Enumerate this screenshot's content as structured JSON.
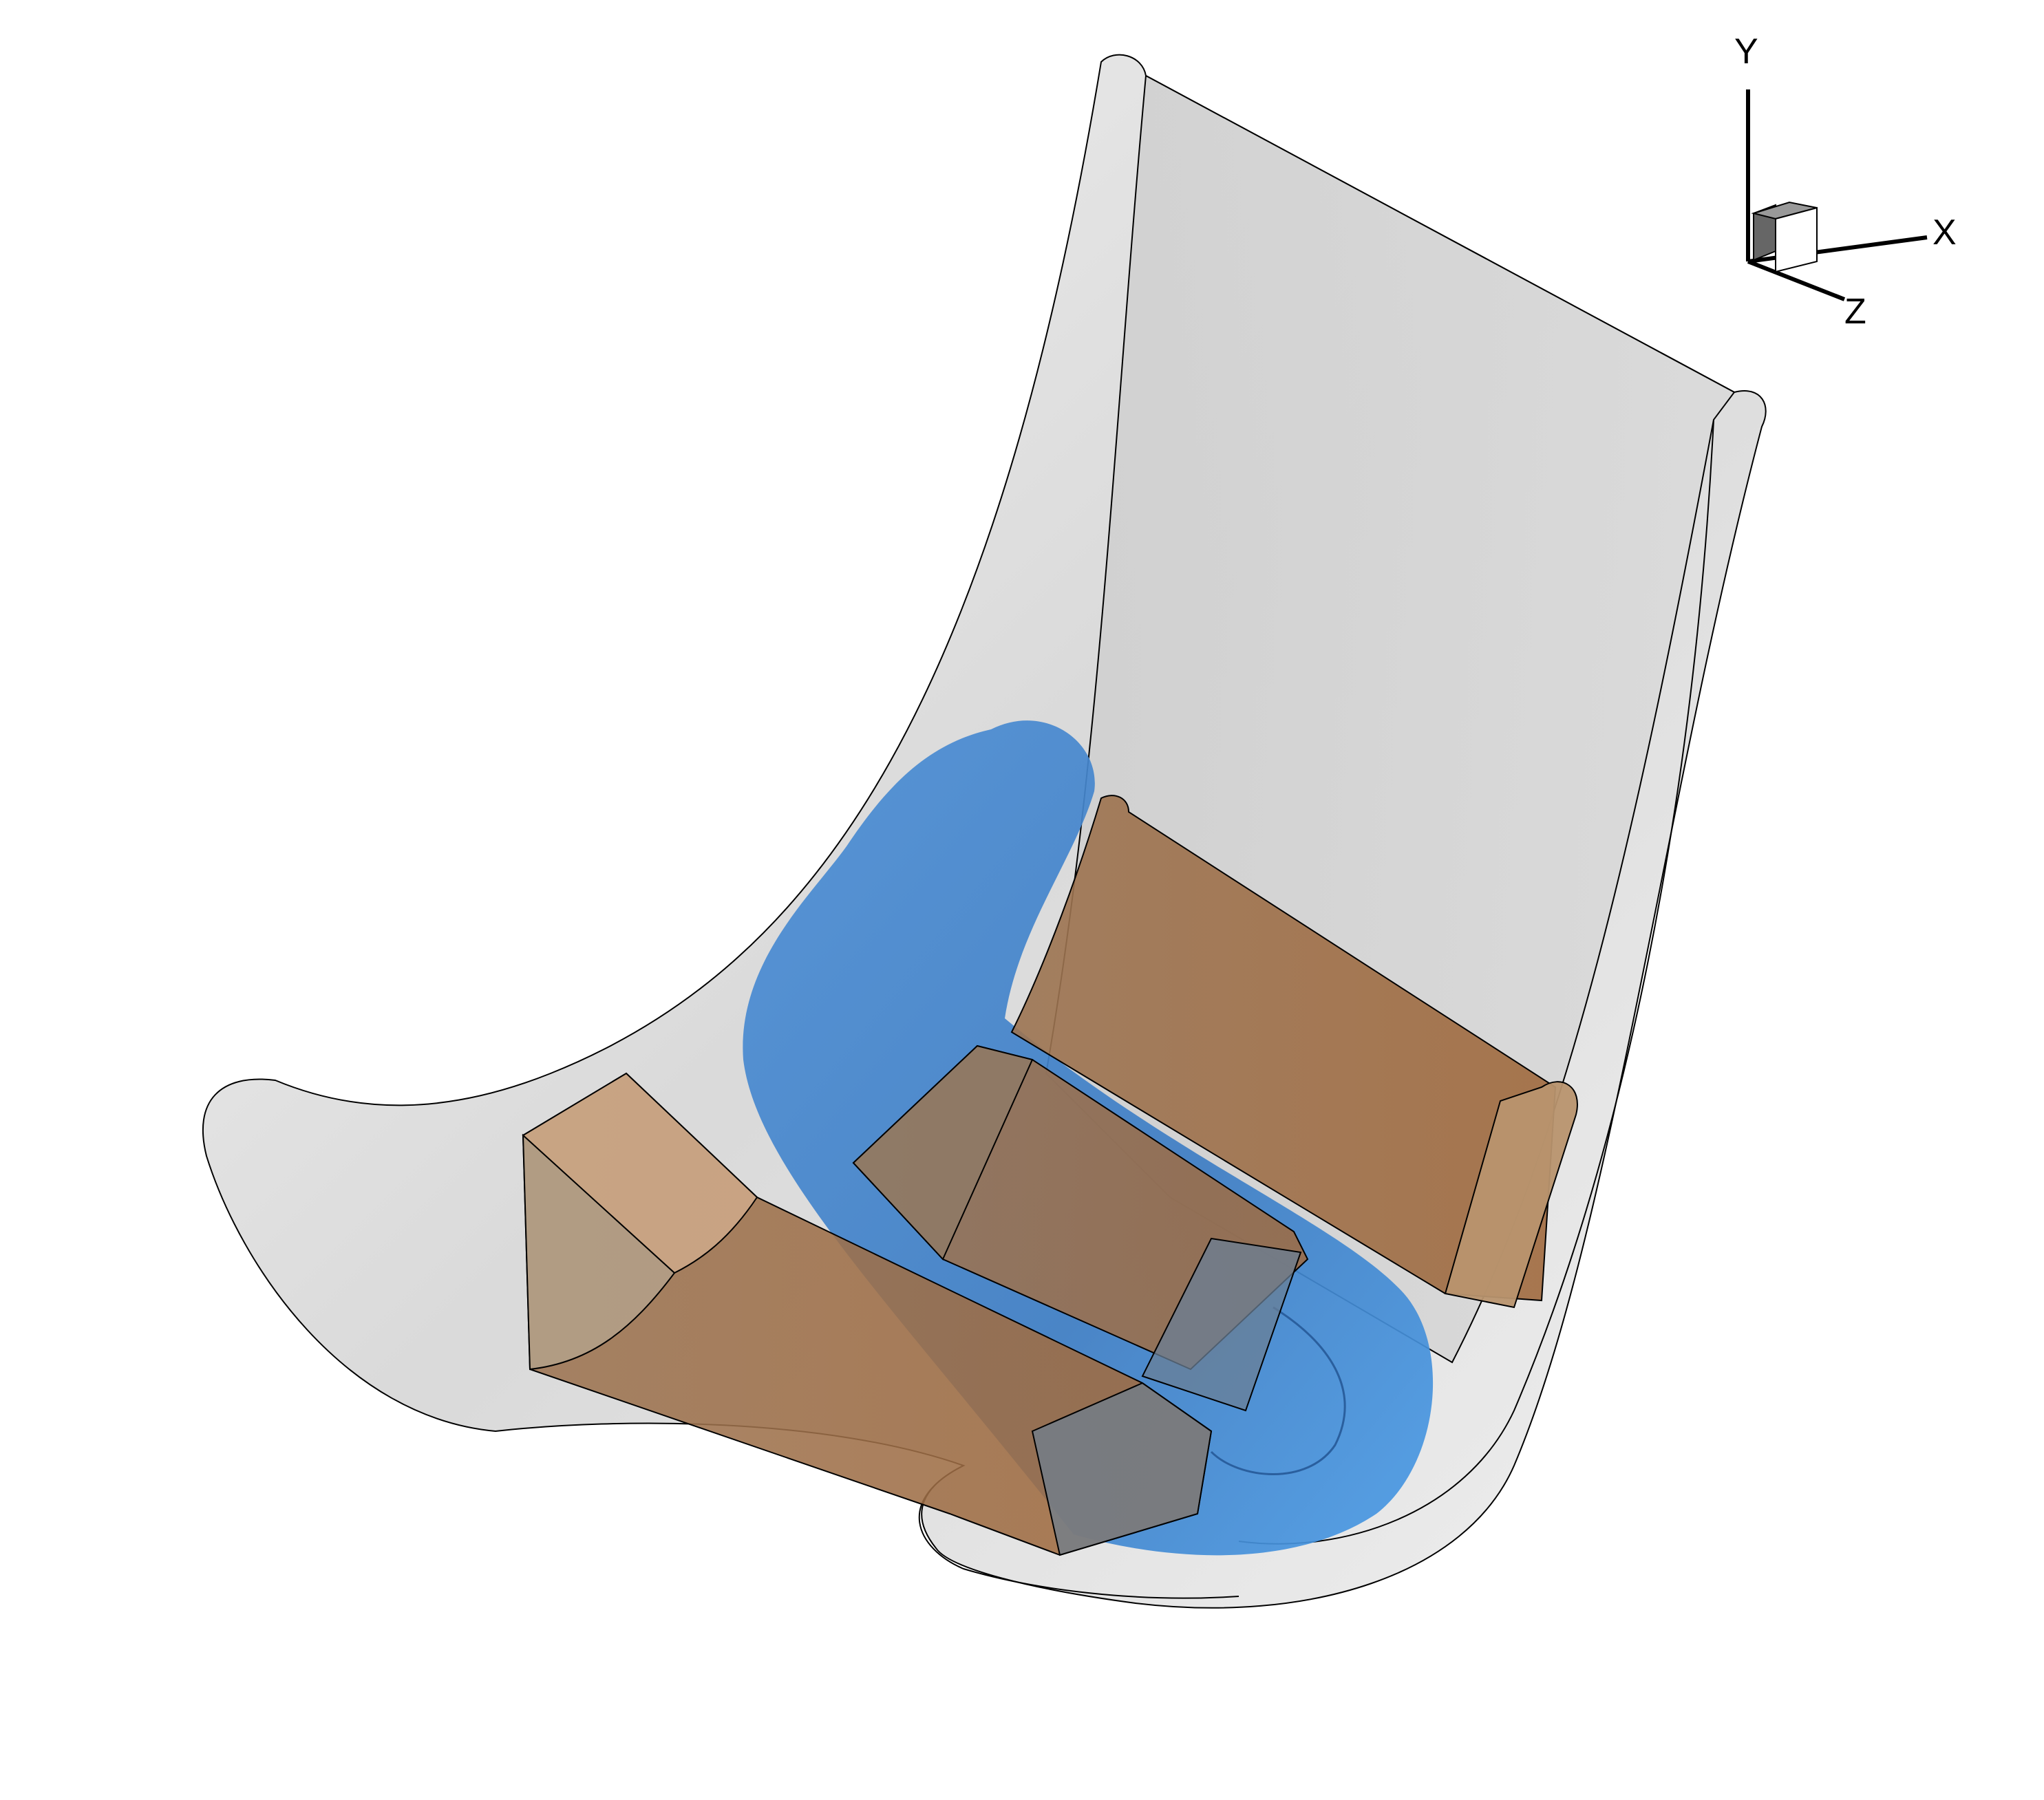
{
  "colors": {
    "background": "#ffffff",
    "outer_surface": "#dcdcdc",
    "outer_surface_light": "#efefef",
    "outline": "#000000",
    "blue_shape": "#3f88d6",
    "blue_shape_dark": "#2f6fb8",
    "orange_shape": "#a8743f",
    "orange_shape_light": "#c9a07a"
  },
  "orientation_axes": {
    "y_label": "Y",
    "x_label": "X",
    "z_label": "Z"
  }
}
